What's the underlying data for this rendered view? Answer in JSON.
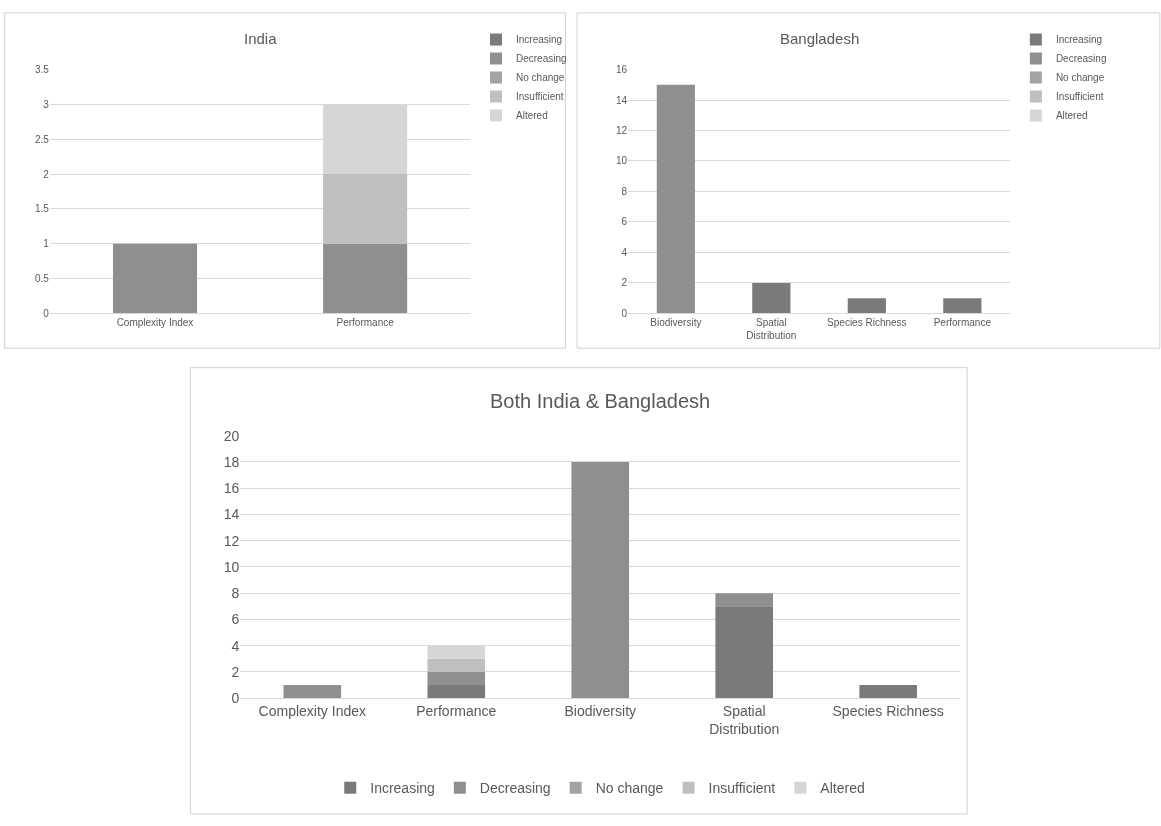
{
  "chart_data": [
    {
      "type": "bar",
      "title": "India",
      "stacked": true,
      "categories": [
        "Complexity Index",
        "Performance"
      ],
      "series": [
        {
          "name": "Increasing",
          "color": "#7a7a7a",
          "values": [
            null,
            null
          ]
        },
        {
          "name": "Decreasing",
          "color": "#8f8f8f",
          "values": [
            1,
            1
          ]
        },
        {
          "name": "No change",
          "color": "#a3a3a3",
          "values": [
            null,
            null
          ]
        },
        {
          "name": "Insufficient",
          "color": "#bfbfbf",
          "values": [
            null,
            1
          ]
        },
        {
          "name": "Altered",
          "color": "#d6d6d6",
          "values": [
            null,
            1
          ]
        }
      ],
      "ylim": [
        0,
        3.5
      ],
      "yticks": [
        0,
        0.5,
        1,
        1.5,
        2,
        2.5,
        3,
        3.5
      ],
      "grid": "y",
      "legend": "top right"
    },
    {
      "type": "bar",
      "title": "Bangladesh",
      "stacked": true,
      "categories": [
        "Biodiversity",
        "Spatial Distribution",
        "Species Richness",
        "Performance"
      ],
      "series": [
        {
          "name": "Increasing",
          "color": "#7a7a7a",
          "values": [
            null,
            2,
            1,
            1
          ]
        },
        {
          "name": "Decreasing",
          "color": "#8f8f8f",
          "values": [
            15,
            null,
            null,
            null
          ]
        },
        {
          "name": "No change",
          "color": "#a3a3a3",
          "values": [
            null,
            null,
            null,
            null
          ]
        },
        {
          "name": "Insufficient",
          "color": "#bfbfbf",
          "values": [
            null,
            null,
            null,
            null
          ]
        },
        {
          "name": "Altered",
          "color": "#d6d6d6",
          "values": [
            null,
            null,
            null,
            null
          ]
        }
      ],
      "ylim": [
        0,
        16
      ],
      "yticks": [
        0,
        2,
        4,
        6,
        8,
        10,
        12,
        14,
        16
      ],
      "grid": "y",
      "legend": "top right"
    },
    {
      "type": "bar",
      "title": "Both India & Bangladesh",
      "stacked": true,
      "categories": [
        "Complexity Index",
        "Performance",
        "Biodiversity",
        "Spatial Distribution",
        "Species Richness"
      ],
      "series": [
        {
          "name": "Increasing",
          "color": "#7a7a7a",
          "values": [
            null,
            1,
            null,
            7,
            1
          ]
        },
        {
          "name": "Decreasing",
          "color": "#8f8f8f",
          "values": [
            1,
            1,
            18,
            1,
            null
          ]
        },
        {
          "name": "No change",
          "color": "#a3a3a3",
          "values": [
            null,
            null,
            null,
            null,
            null
          ]
        },
        {
          "name": "Insufficient",
          "color": "#bfbfbf",
          "values": [
            null,
            1,
            null,
            null,
            null
          ]
        },
        {
          "name": "Altered",
          "color": "#d6d6d6",
          "values": [
            null,
            1,
            null,
            null,
            null
          ]
        }
      ],
      "ylim": [
        0,
        20
      ],
      "yticks": [
        0,
        2,
        4,
        6,
        8,
        10,
        12,
        14,
        16,
        18,
        20
      ],
      "grid": "y",
      "legend": "bottom"
    }
  ]
}
